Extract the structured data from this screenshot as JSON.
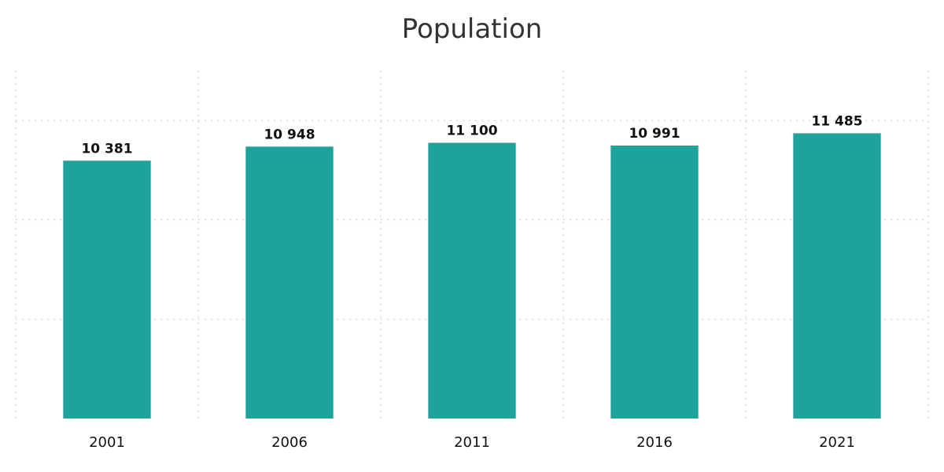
{
  "chart_data": {
    "type": "bar",
    "title": "Population",
    "xlabel": "",
    "ylabel": "",
    "categories": [
      "2001",
      "2006",
      "2011",
      "2016",
      "2021"
    ],
    "values": [
      10381,
      10948,
      11100,
      10991,
      11485
    ],
    "value_labels": [
      "10 381",
      "10 948",
      "11 100",
      "10 991",
      "11 485"
    ],
    "ylim": [
      0,
      14000
    ],
    "grid": true,
    "legend": "none",
    "bar_color": "#1ea39c"
  }
}
